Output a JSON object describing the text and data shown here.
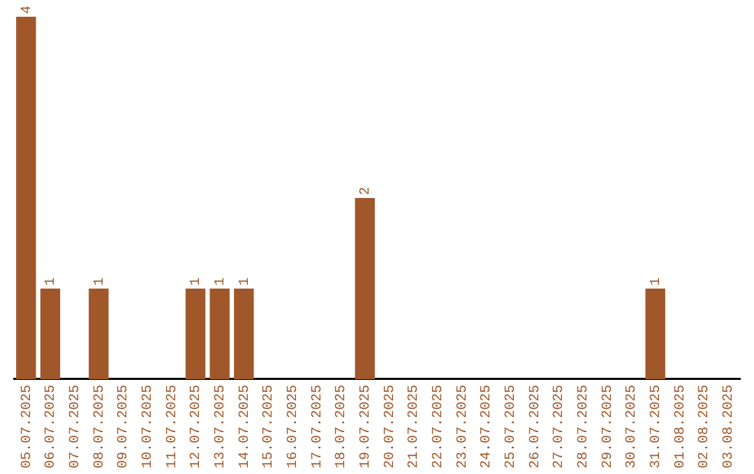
{
  "chart_data": {
    "type": "bar",
    "categories": [
      "05.07.2025",
      "06.07.2025",
      "07.07.2025",
      "08.07.2025",
      "09.07.2025",
      "10.07.2025",
      "11.07.2025",
      "12.07.2025",
      "13.07.2025",
      "14.07.2025",
      "15.07.2025",
      "16.07.2025",
      "17.07.2025",
      "18.07.2025",
      "19.07.2025",
      "20.07.2025",
      "21.07.2025",
      "22.07.2025",
      "23.07.2025",
      "24.07.2025",
      "25.07.2025",
      "26.07.2025",
      "27.07.2025",
      "28.07.2025",
      "29.07.2025",
      "30.07.2025",
      "31.07.2025",
      "01.08.2025",
      "02.08.2025",
      "03.08.2025"
    ],
    "values": [
      4,
      1,
      0,
      1,
      0,
      0,
      0,
      1,
      1,
      1,
      0,
      0,
      0,
      0,
      2,
      0,
      0,
      0,
      0,
      0,
      0,
      0,
      0,
      0,
      0,
      0,
      1,
      0,
      0,
      0
    ],
    "value_labels": [
      "4",
      "1",
      null,
      "1",
      null,
      null,
      null,
      "1",
      "1",
      "1",
      null,
      null,
      null,
      null,
      "2",
      null,
      null,
      null,
      null,
      null,
      null,
      null,
      null,
      null,
      null,
      null,
      "1",
      null,
      null,
      null
    ],
    "color": "#a0582a",
    "tick_labels": "x",
    "grid": false,
    "legend": false
  }
}
